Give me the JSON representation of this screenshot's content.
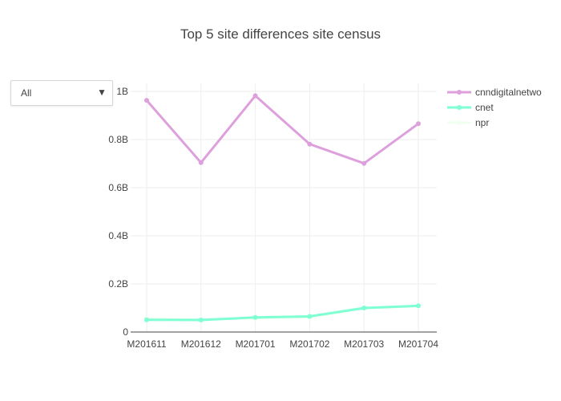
{
  "dropdown": {
    "selected": "All"
  },
  "chart_data": {
    "type": "line",
    "title": "Top 5 site differences site census",
    "xlabel": "",
    "ylabel": "",
    "categories": [
      "M201611",
      "M201612",
      "M201701",
      "M201702",
      "M201703",
      "M201704"
    ],
    "y_ticks": [
      {
        "value": 0,
        "label": "0"
      },
      {
        "value": 200000000,
        "label": "0.2B"
      },
      {
        "value": 400000000,
        "label": "0.4B"
      },
      {
        "value": 600000000,
        "label": "0.6B"
      },
      {
        "value": 800000000,
        "label": "0.8B"
      },
      {
        "value": 1000000000,
        "label": "1B"
      }
    ],
    "ylim": [
      0,
      1000000000
    ],
    "grid": true,
    "legend_position": "top-right",
    "series": [
      {
        "name": "cnndigitalnetwo",
        "color": "#dda0dd",
        "values": [
          963000000,
          704000000,
          982000000,
          781000000,
          701000000,
          866000000
        ]
      },
      {
        "name": "cnet",
        "color": "#7fffd4",
        "values": [
          51000000,
          50000000,
          61000000,
          65000000,
          100000000,
          109000000
        ]
      },
      {
        "name": "npr",
        "color": "#f0fff0",
        "values": [
          55000000,
          52000000,
          58000000,
          62000000,
          98000000,
          107000000
        ]
      }
    ]
  }
}
